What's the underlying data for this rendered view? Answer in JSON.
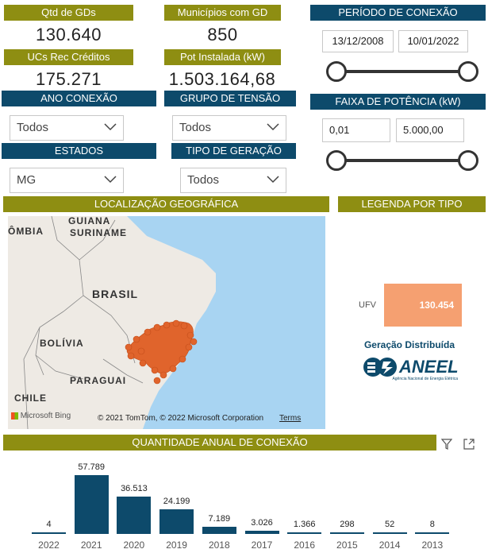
{
  "kpis": {
    "qtd_gds_label": "Qtd de GDs",
    "qtd_gds_value": "130.640",
    "municipios_label": "Municípios com GD",
    "municipios_value": "850",
    "ucs_label": "UCs Rec Créditos",
    "ucs_value": "175.271",
    "pot_label": "Pot Instalada (kW)",
    "pot_value": "1.503.164,68"
  },
  "periodo": {
    "title": "PERÍODO DE CONEXÃO",
    "start": "13/12/2008",
    "end": "10/01/2022"
  },
  "faixa": {
    "title": "FAIXA DE POTÊNCIA (kW)",
    "min": "0,01",
    "max": "5.000,00"
  },
  "filters": {
    "ano_label": "ANO CONEXÃO",
    "ano_value": "Todos",
    "grupo_label": "GRUPO DE TENSÃO",
    "grupo_value": "Todos",
    "estados_label": "ESTADOS",
    "estados_value": "MG",
    "tipo_label": "TIPO DE GERAÇÃO",
    "tipo_value": "Todos"
  },
  "map": {
    "title": "LOCALIZAÇÃO GEOGRÁFICA",
    "labels": [
      "GUIANA",
      "SURINAME",
      "ÔMBIA",
      "BRASIL",
      "BOLÍVIA",
      "PARAGUAI",
      "CHILE"
    ],
    "bing": "Microsoft Bing",
    "copyright": "© 2021 TomTom, © 2022 Microsoft Corporation",
    "terms": "Terms"
  },
  "legend": {
    "title": "LEGENDA POR TIPO",
    "type": "UFV",
    "value": "130.454",
    "brand_caption": "Geração Distribuída",
    "brand_name": "ANEEL",
    "brand_sub": "Agência Nacional de Energia Elétrica"
  },
  "chart_title": "QUANTIDADE ANUAL DE CONEXÃO",
  "colors": {
    "olive": "#8e8e12",
    "navy": "#0d4a6b",
    "legend": "#f5a071",
    "map_points": "#e0642c"
  },
  "chart_data": {
    "type": "bar",
    "categories": [
      "2022",
      "2021",
      "2020",
      "2019",
      "2018",
      "2017",
      "2016",
      "2015",
      "2014",
      "2013"
    ],
    "values": [
      4,
      57789,
      36513,
      24199,
      7189,
      3026,
      1366,
      298,
      52,
      8
    ],
    "labels": [
      "4",
      "57.789",
      "36.513",
      "24.199",
      "7.189",
      "3.026",
      "1.366",
      "298",
      "52",
      "8"
    ],
    "title": "QUANTIDADE ANUAL DE CONEXÃO"
  }
}
